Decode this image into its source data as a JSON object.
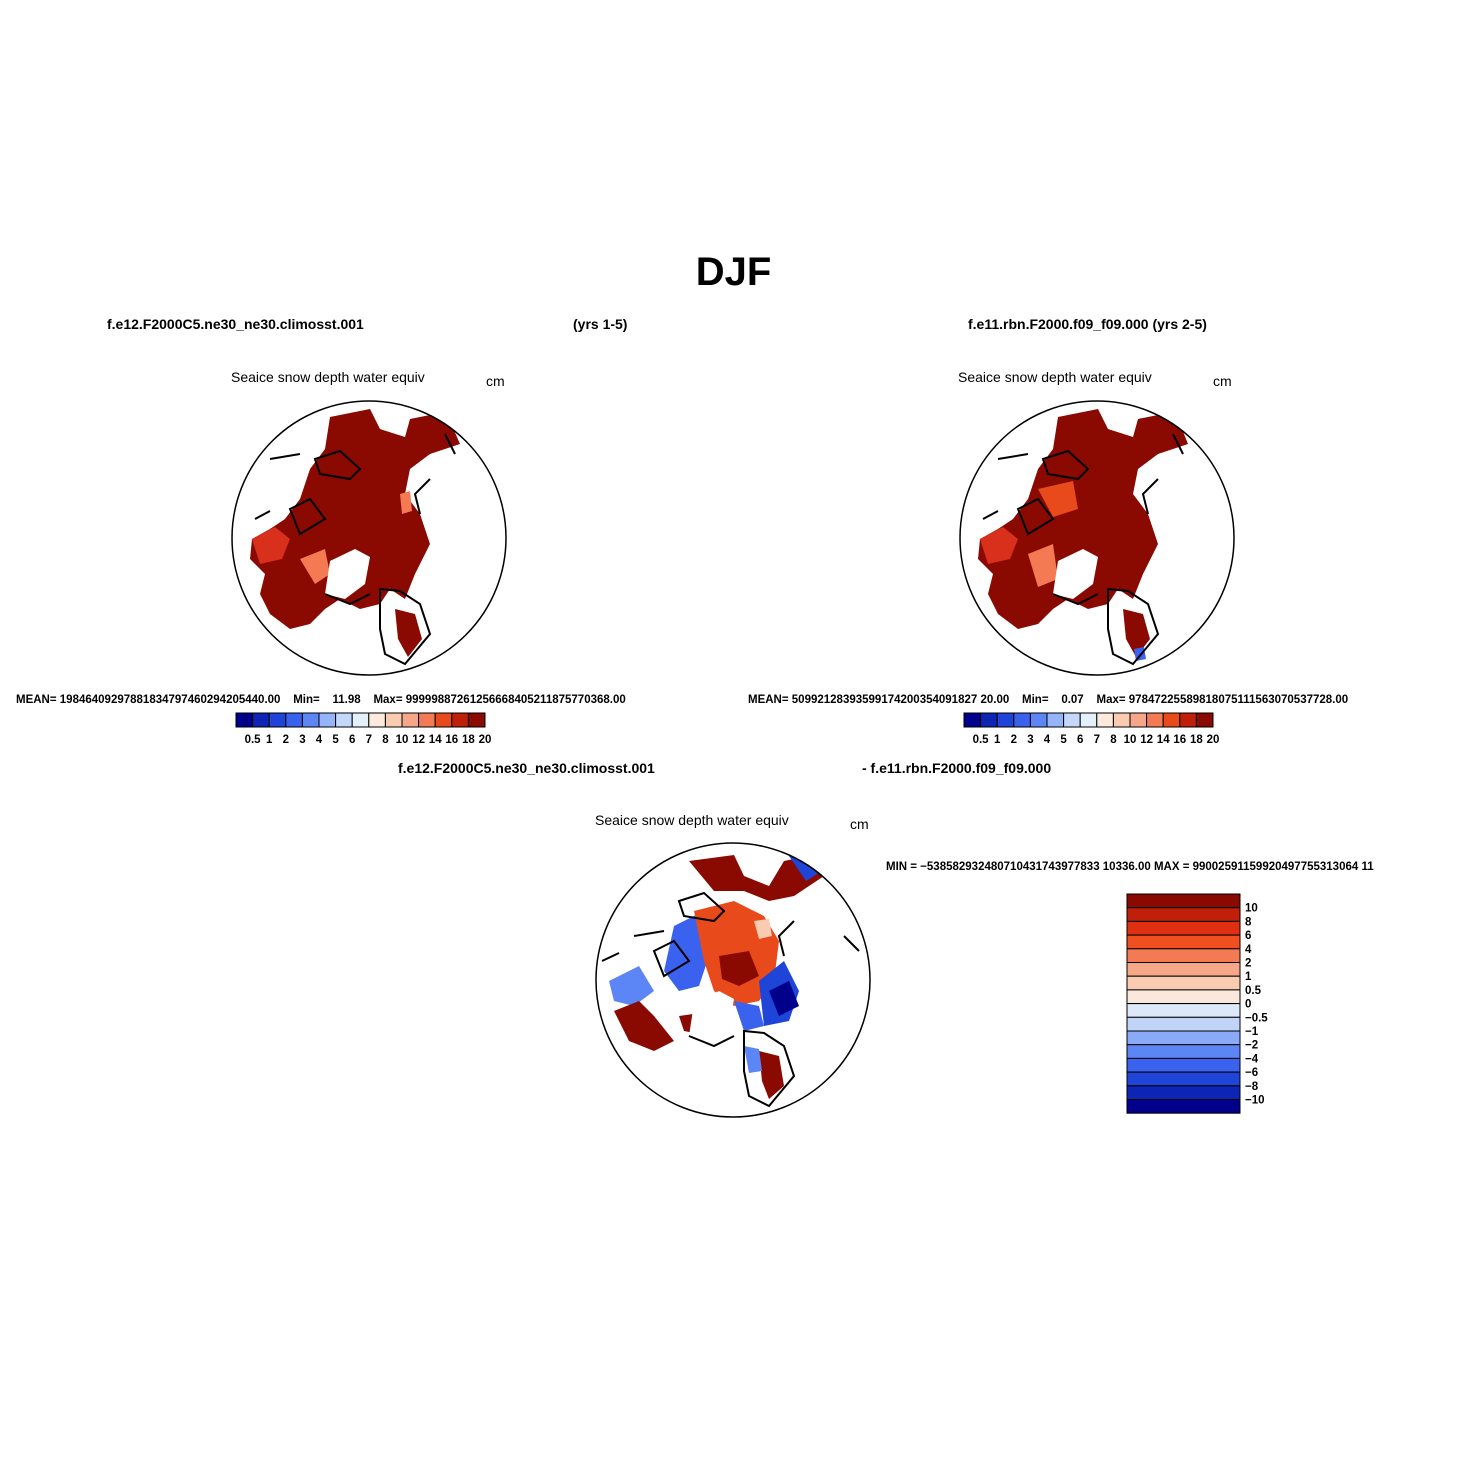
{
  "title": "DJF",
  "panels": [
    {
      "case_label": "f.e12.F2000C5.ne30_ne30.climosst.001",
      "years_label": "(yrs 1-5)",
      "variable": "Seaice snow depth water equiv",
      "units": "cm",
      "stats": {
        "mean_label": "MEAN=",
        "mean": "19846409297881834797460294205440.00",
        "min_label": "Min=",
        "min": "11.98",
        "max_label": "Max=",
        "max": "99999887261256668405211875770368.00"
      },
      "colorbar": {
        "labels": [
          "0.5",
          "1",
          "2",
          "3",
          "4",
          "5",
          "6",
          "7",
          "8",
          "10",
          "12",
          "14",
          "16",
          "18",
          "20"
        ],
        "colors": [
          "#00008a",
          "#0d24b4",
          "#1f44d8",
          "#3a62ee",
          "#5c86f6",
          "#95b4fa",
          "#c4d8fc",
          "#e4f0fc",
          "#fcebdc",
          "#f9cbb0",
          "#f5a787",
          "#f37a52",
          "#e94a1c",
          "#c0200a",
          "#8a0a02"
        ]
      }
    },
    {
      "case_label": "f.e11.rbn.F2000.f09_f09.000 (yrs 2-5)",
      "variable": "Seaice snow depth water equiv",
      "units": "cm",
      "stats": {
        "mean_label": "MEAN=",
        "mean": "50992128393599174200354091827 20.00",
        "min_label": "Min=",
        "min": "0.07",
        "max_label": "Max=",
        "max": "97847225589818075111563070537728.00"
      },
      "colorbar": {
        "labels": [
          "0.5",
          "1",
          "2",
          "3",
          "4",
          "5",
          "6",
          "7",
          "8",
          "10",
          "12",
          "14",
          "16",
          "18",
          "20"
        ],
        "colors": [
          "#00008a",
          "#0d24b4",
          "#1f44d8",
          "#3a62ee",
          "#5c86f6",
          "#95b4fa",
          "#c4d8fc",
          "#e4f0fc",
          "#fcebdc",
          "#f9cbb0",
          "#f5a787",
          "#f37a52",
          "#e94a1c",
          "#c0200a",
          "#8a0a02"
        ]
      }
    },
    {
      "case_label_left": "f.e12.F2000C5.ne30_ne30.climosst.001",
      "case_label_right": "- f.e11.rbn.F2000.f09_f09.000",
      "variable": "Seaice snow depth water equiv",
      "units": "cm",
      "minmax": "MIN = −538582932480710431743977833 10336.00 MAX = 99002591159920497755313064 11",
      "colorbar": {
        "labels": [
          "10",
          "8",
          "6",
          "4",
          "2",
          "1",
          "0.5",
          "0",
          "−0.5",
          "−1",
          "−2",
          "−4",
          "−6",
          "−8",
          "−10"
        ],
        "colors": [
          "#8a0a02",
          "#c0200a",
          "#e03012",
          "#f05020",
          "#f37a52",
          "#f5a787",
          "#f9cbb0",
          "#fbe8dc",
          "#dde9f8",
          "#c0d4f8",
          "#8aaaf6",
          "#5c86f6",
          "#3a62ee",
          "#1f44d8",
          "#0d24b4",
          "#00008a"
        ]
      }
    }
  ]
}
